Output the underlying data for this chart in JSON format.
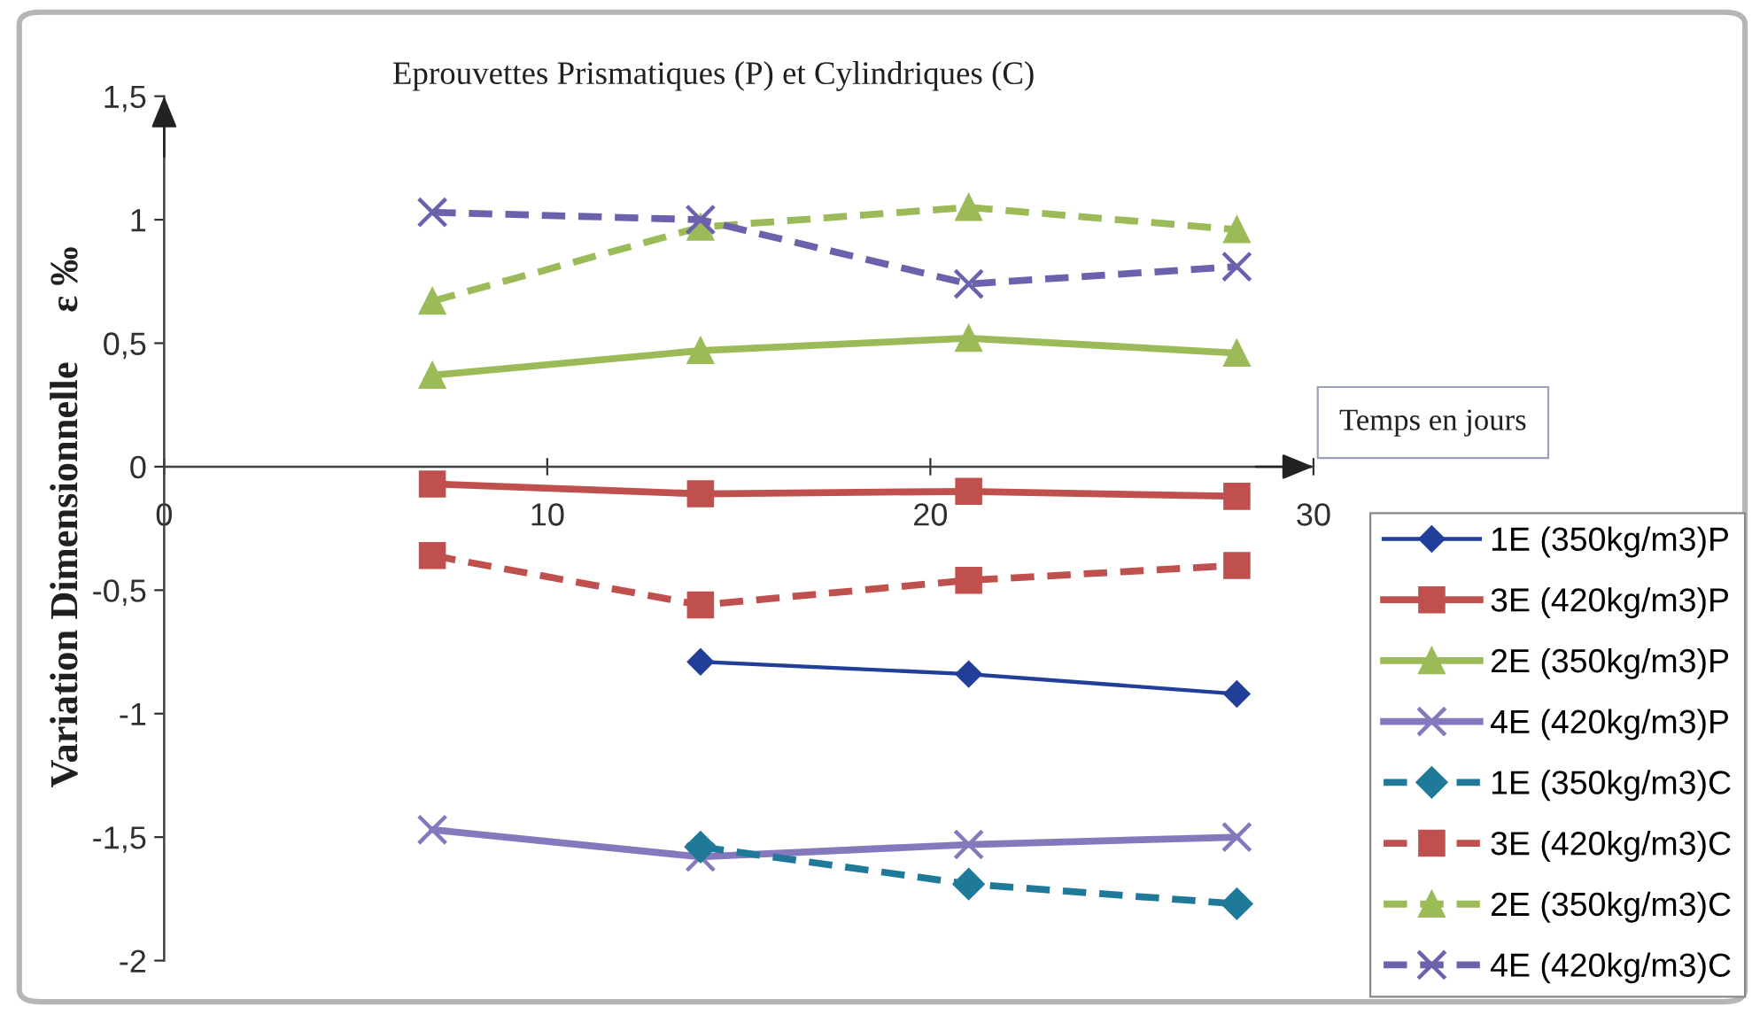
{
  "chart_data": {
    "type": "line",
    "title": "Eprouvettes Prismatiques (P) et Cylindriques (C)",
    "xlabel": "Temps en jours",
    "ylabel": "Variation Dimensionnelle     ε ‰",
    "x": [
      7,
      14,
      21,
      28
    ],
    "series": [
      {
        "name": "1E (350kg/m3)P",
        "color": "#213f99",
        "values": [
          null,
          -0.79,
          -0.84,
          -0.92
        ],
        "marker": "diamond",
        "line_style": "solid"
      },
      {
        "name": "3E (420kg/m3)P",
        "color": "#c0504d",
        "values": [
          -0.07,
          -0.11,
          -0.1,
          -0.12
        ],
        "marker": "square",
        "line_style": "solid"
      },
      {
        "name": "2E (350kg/m3)P",
        "color": "#9bbb59",
        "values": [
          0.37,
          0.47,
          0.52,
          0.46
        ],
        "marker": "triangle",
        "line_style": "solid"
      },
      {
        "name": "4E (420kg/m3)P",
        "color": "#8678bd",
        "values": [
          -1.47,
          -1.58,
          -1.53,
          -1.5
        ],
        "marker": "cross",
        "line_style": "solid"
      },
      {
        "name": "1E (350kg/m3)C",
        "color": "#1f7a9a",
        "values": [
          null,
          -1.54,
          -1.69,
          -1.77
        ],
        "marker": "diamond",
        "line_style": "dashed"
      },
      {
        "name": "3E (420kg/m3)C",
        "color": "#c0504d",
        "values": [
          -0.36,
          -0.56,
          -0.46,
          -0.4
        ],
        "marker": "square",
        "line_style": "dashed"
      },
      {
        "name": "2E (350kg/m3)C",
        "color": "#9bbb59",
        "values": [
          0.67,
          0.97,
          1.05,
          0.96
        ],
        "marker": "triangle",
        "line_style": "dashed"
      },
      {
        "name": "4E (420kg/m3)C",
        "color": "#6b62ad",
        "values": [
          1.03,
          1.0,
          0.74,
          0.81
        ],
        "marker": "cross",
        "line_style": "dashed"
      }
    ],
    "xlim": [
      0,
      30
    ],
    "xticks": [
      0,
      10,
      20,
      30
    ],
    "ylim": [
      -2,
      1.5
    ],
    "yticks": [
      {
        "value": -2,
        "label": "-2"
      },
      {
        "value": -1.5,
        "label": "-1,5"
      },
      {
        "value": -1,
        "label": "-1"
      },
      {
        "value": -0.5,
        "label": "-0,5"
      },
      0,
      {
        "value": 0.5,
        "label": "0,5"
      },
      1,
      {
        "value": 1.5,
        "label": "1,5"
      }
    ],
    "legend": "bottom right"
  }
}
